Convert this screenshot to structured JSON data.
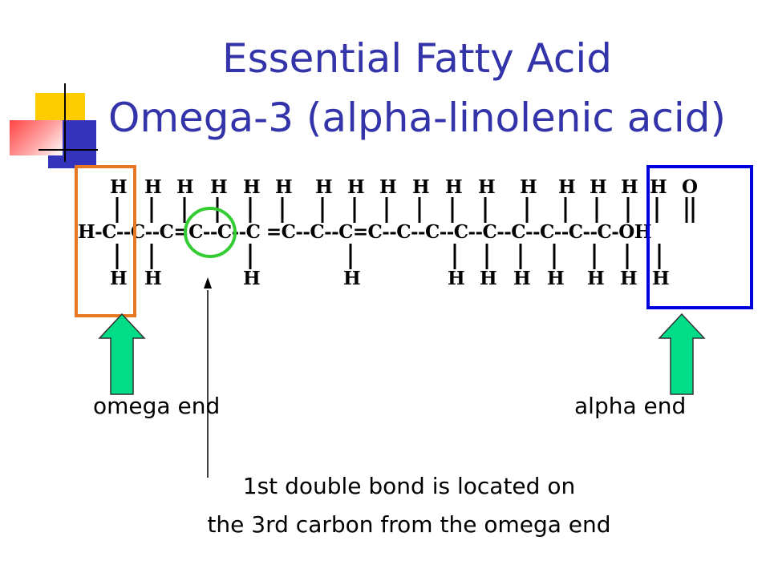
{
  "title": {
    "line1": "Essential Fatty Acid",
    "line2": "Omega-3 (alpha-linolenic acid)"
  },
  "formula": {
    "top_row": [
      "H",
      "H",
      "H",
      "H",
      "H",
      "H",
      "H",
      "H",
      "H",
      "H",
      "H",
      "H",
      "H",
      "H",
      "H",
      "H",
      "H",
      "O"
    ],
    "chain": "H-C--C--C=C--C--C =C--C--C=C--C--C--C--C--C--C--C--C-OH",
    "bottom_row": [
      "H",
      "H",
      "H",
      "H",
      "H",
      "H",
      "H",
      "H",
      "H",
      "H",
      "H"
    ]
  },
  "labels": {
    "omega_end": "omega end",
    "alpha_end": "alpha end"
  },
  "annotation": {
    "line1": "1st double bond is located on",
    "line2": "the 3rd carbon from the omega end"
  },
  "colors": {
    "title": "#3333aa",
    "omega_box": "#e87722",
    "alpha_box": "#0000dd",
    "double_bond_circle": "#33cc33",
    "arrow_fill": "#00dd88"
  }
}
